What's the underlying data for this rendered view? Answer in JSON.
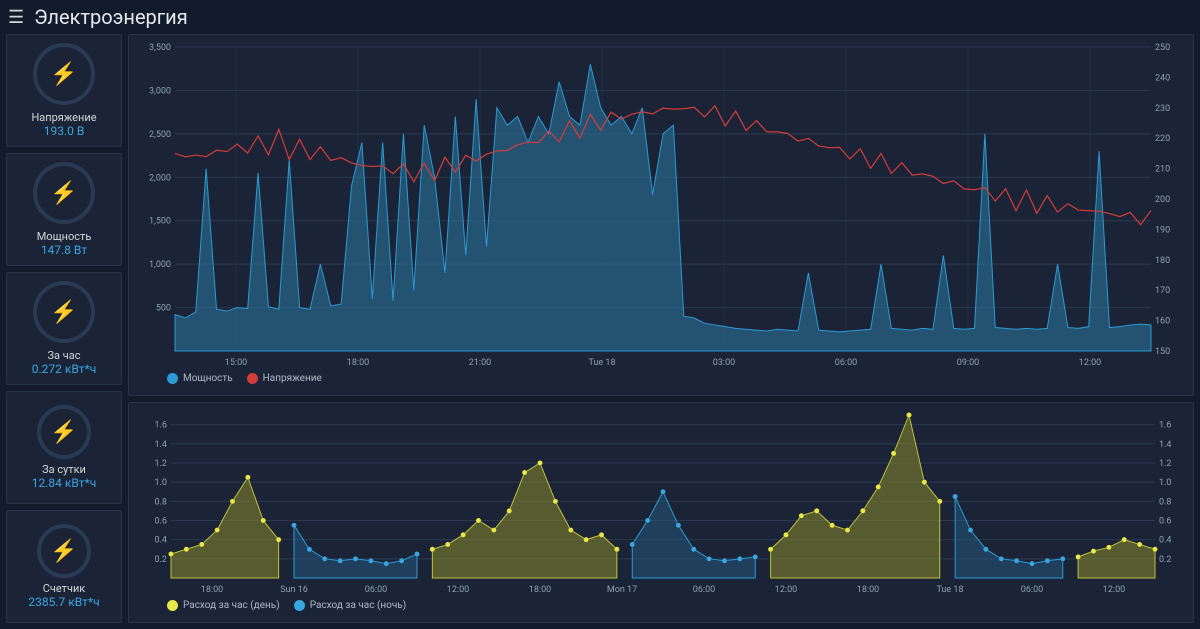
{
  "header": {
    "title": "Электроэнергия"
  },
  "colors": {
    "bg": "#111b2c",
    "panel": "#1a2436",
    "grid": "#2b3950",
    "axis_text": "#8fa0b5",
    "accent": "#3aa6e0",
    "series_power_fill": "#2a6a8fAA",
    "series_power_stroke": "#2c9ad4",
    "series_voltage": "#d43c3c",
    "series_day_fill": "#8a8c2b88",
    "series_day_stroke": "#bfc23a",
    "series_day_marker": "#e8e84a",
    "series_night_fill": "#25597d88",
    "series_night_stroke": "#2c9ad4",
    "series_night_marker": "#3aa6e0"
  },
  "metrics": [
    {
      "label": "Напряжение",
      "value": "193.0 В"
    },
    {
      "label": "Мощность",
      "value": "147.8 Вт"
    },
    {
      "label": "За час",
      "value": "0.272 кВт*ч"
    },
    {
      "label": "За сутки",
      "value": "12.84 кВт*ч"
    },
    {
      "label": "Счетчик",
      "value": "2385.7 кВт*ч"
    }
  ],
  "chart_top": {
    "y_left": {
      "min": 0,
      "max": 3500,
      "ticks": [
        500,
        1000,
        1500,
        2000,
        2500,
        3000,
        3500
      ]
    },
    "y_right": {
      "min": 150,
      "max": 250,
      "ticks": [
        150,
        160,
        170,
        180,
        190,
        200,
        210,
        220,
        230,
        240,
        250
      ]
    },
    "x_labels": [
      "15:00",
      "18:00",
      "21:00",
      "Tue 18",
      "03:00",
      "06:00",
      "09:00",
      "12:00"
    ],
    "legend": [
      {
        "label": "Мощность",
        "color": "#2c9ad4",
        "shape": "area"
      },
      {
        "label": "Напряжение",
        "color": "#d43c3c",
        "shape": "line"
      }
    ],
    "power": [
      420,
      380,
      450,
      2100,
      480,
      460,
      500,
      490,
      2050,
      510,
      480,
      2200,
      500,
      480,
      1000,
      520,
      540,
      1900,
      2400,
      600,
      2400,
      580,
      2500,
      700,
      2600,
      2000,
      900,
      2700,
      1100,
      2900,
      1200,
      2800,
      2600,
      2700,
      2400,
      2700,
      2500,
      3100,
      2700,
      2600,
      3300,
      2800,
      2600,
      2700,
      2500,
      2800,
      1800,
      2500,
      2600,
      400,
      380,
      320,
      300,
      280,
      260,
      250,
      240,
      230,
      250,
      240,
      230,
      900,
      240,
      230,
      220,
      230,
      240,
      250,
      1000,
      260,
      250,
      240,
      260,
      250,
      1100,
      260,
      250,
      260,
      2500,
      270,
      260,
      250,
      260,
      250,
      260,
      1000,
      270,
      260,
      280,
      2300,
      270,
      280,
      300,
      310,
      300
    ],
    "voltage": [
      215,
      213,
      216,
      212,
      218,
      214,
      219,
      215,
      220,
      216,
      221,
      215,
      218,
      214,
      217,
      212,
      215,
      210,
      213,
      209,
      212,
      208,
      211,
      207,
      210,
      208,
      212,
      210,
      214,
      212,
      216,
      214,
      218,
      216,
      220,
      218,
      222,
      220,
      224,
      222,
      226,
      224,
      228,
      226,
      229,
      227,
      230,
      228,
      231,
      229,
      230,
      228,
      229,
      226,
      227,
      224,
      225,
      222,
      223,
      220,
      221,
      218,
      219,
      216,
      217,
      214,
      215,
      212,
      213,
      210,
      211,
      208,
      209,
      206,
      207,
      204,
      205,
      202,
      204,
      200,
      202,
      198,
      201,
      197,
      200,
      196,
      199,
      195,
      198,
      194,
      197,
      193,
      196,
      192,
      195
    ]
  },
  "chart_bottom": {
    "y": {
      "min": 0,
      "max": 1.7,
      "ticks": [
        0.2,
        0.4,
        0.6,
        0.8,
        1.0,
        1.2,
        1.4,
        1.6
      ]
    },
    "x_labels": [
      "18:00",
      "Sun 16",
      "06:00",
      "12:00",
      "18:00",
      "Mon 17",
      "06:00",
      "12:00",
      "18:00",
      "Tue 18",
      "06:00",
      "12:00"
    ],
    "legend": [
      {
        "label": "Расход за час (день)",
        "marker": "#e8e84a"
      },
      {
        "label": "Расход за час (ночь)",
        "marker": "#3aa6e0"
      }
    ],
    "points": [
      {
        "v": 0.25,
        "d": true
      },
      {
        "v": 0.3,
        "d": true
      },
      {
        "v": 0.35,
        "d": true
      },
      {
        "v": 0.5,
        "d": true
      },
      {
        "v": 0.8,
        "d": true
      },
      {
        "v": 1.05,
        "d": true
      },
      {
        "v": 0.6,
        "d": true
      },
      {
        "v": 0.4,
        "d": true
      },
      {
        "v": 0.55,
        "d": false
      },
      {
        "v": 0.3,
        "d": false
      },
      {
        "v": 0.2,
        "d": false
      },
      {
        "v": 0.18,
        "d": false
      },
      {
        "v": 0.2,
        "d": false
      },
      {
        "v": 0.18,
        "d": false
      },
      {
        "v": 0.15,
        "d": false
      },
      {
        "v": 0.18,
        "d": false
      },
      {
        "v": 0.25,
        "d": false
      },
      {
        "v": 0.3,
        "d": true
      },
      {
        "v": 0.35,
        "d": true
      },
      {
        "v": 0.45,
        "d": true
      },
      {
        "v": 0.6,
        "d": true
      },
      {
        "v": 0.5,
        "d": true
      },
      {
        "v": 0.7,
        "d": true
      },
      {
        "v": 1.1,
        "d": true
      },
      {
        "v": 1.2,
        "d": true
      },
      {
        "v": 0.8,
        "d": true
      },
      {
        "v": 0.5,
        "d": true
      },
      {
        "v": 0.4,
        "d": true
      },
      {
        "v": 0.45,
        "d": true
      },
      {
        "v": 0.3,
        "d": true
      },
      {
        "v": 0.35,
        "d": false
      },
      {
        "v": 0.6,
        "d": false
      },
      {
        "v": 0.9,
        "d": false
      },
      {
        "v": 0.55,
        "d": false
      },
      {
        "v": 0.3,
        "d": false
      },
      {
        "v": 0.2,
        "d": false
      },
      {
        "v": 0.18,
        "d": false
      },
      {
        "v": 0.2,
        "d": false
      },
      {
        "v": 0.22,
        "d": false
      },
      {
        "v": 0.3,
        "d": true
      },
      {
        "v": 0.45,
        "d": true
      },
      {
        "v": 0.65,
        "d": true
      },
      {
        "v": 0.7,
        "d": true
      },
      {
        "v": 0.55,
        "d": true
      },
      {
        "v": 0.5,
        "d": true
      },
      {
        "v": 0.7,
        "d": true
      },
      {
        "v": 0.95,
        "d": true
      },
      {
        "v": 1.3,
        "d": true
      },
      {
        "v": 1.7,
        "d": true
      },
      {
        "v": 1.0,
        "d": true
      },
      {
        "v": 0.8,
        "d": true
      },
      {
        "v": 0.85,
        "d": false
      },
      {
        "v": 0.5,
        "d": false
      },
      {
        "v": 0.3,
        "d": false
      },
      {
        "v": 0.2,
        "d": false
      },
      {
        "v": 0.18,
        "d": false
      },
      {
        "v": 0.15,
        "d": false
      },
      {
        "v": 0.18,
        "d": false
      },
      {
        "v": 0.2,
        "d": false
      },
      {
        "v": 0.22,
        "d": true
      },
      {
        "v": 0.28,
        "d": true
      },
      {
        "v": 0.32,
        "d": true
      },
      {
        "v": 0.4,
        "d": true
      },
      {
        "v": 0.35,
        "d": true
      },
      {
        "v": 0.3,
        "d": true
      }
    ]
  }
}
